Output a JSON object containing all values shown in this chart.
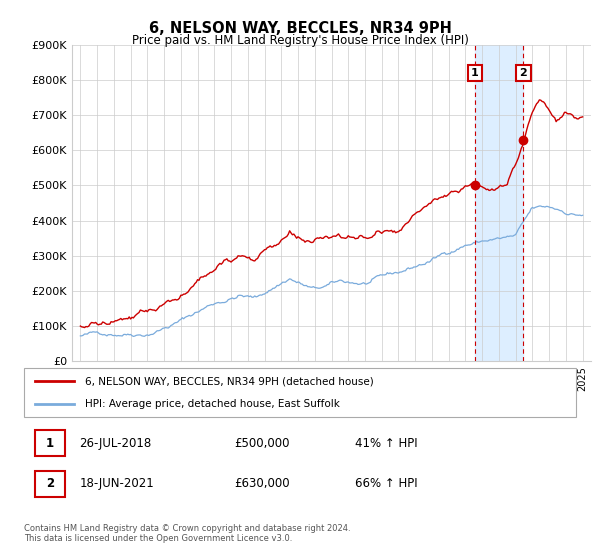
{
  "title": "6, NELSON WAY, BECCLES, NR34 9PH",
  "subtitle": "Price paid vs. HM Land Registry's House Price Index (HPI)",
  "ylabel_ticks": [
    "£0",
    "£100K",
    "£200K",
    "£300K",
    "£400K",
    "£500K",
    "£600K",
    "£700K",
    "£800K",
    "£900K"
  ],
  "ylim": [
    0,
    900000
  ],
  "transaction1": {
    "year": 2018.57,
    "price": 500000,
    "label": "1",
    "date": "26-JUL-2018",
    "pct": "41% ↑ HPI"
  },
  "transaction2": {
    "year": 2021.46,
    "price": 630000,
    "label": "2",
    "date": "18-JUN-2021",
    "pct": "66% ↑ HPI"
  },
  "legend_line1": "6, NELSON WAY, BECCLES, NR34 9PH (detached house)",
  "legend_line2": "HPI: Average price, detached house, East Suffolk",
  "table_row1": [
    "1",
    "26-JUL-2018",
    "£500,000",
    "41% ↑ HPI"
  ],
  "table_row2": [
    "2",
    "18-JUN-2021",
    "£630,000",
    "66% ↑ HPI"
  ],
  "footer": "Contains HM Land Registry data © Crown copyright and database right 2024.\nThis data is licensed under the Open Government Licence v3.0.",
  "line_color_red": "#cc0000",
  "line_color_blue": "#7aabdc",
  "highlight_bg": "#ddeeff",
  "vline_color": "#cc0000",
  "marker_box_color": "#cc0000",
  "grid_color": "#cccccc",
  "bg_color": "#ffffff"
}
